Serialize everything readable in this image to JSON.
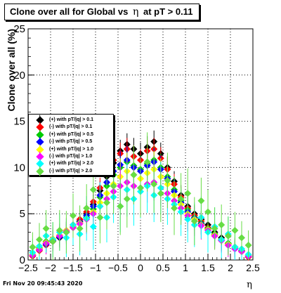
{
  "title": {
    "prefix": "Clone  over all for Global vs",
    "symbol": "η",
    "suffix": "at pT > 0.11"
  },
  "footer": {
    "timestamp": "Fri Nov 20 09:45:43 2020"
  },
  "chart_data": {
    "type": "scatter",
    "title": "Clone  over all for Global vs η at pT > 0.11",
    "xlabel": "η",
    "ylabel": "Clone  over all (%)",
    "xlim": [
      -2.5,
      2.5
    ],
    "ylim": [
      0,
      25
    ],
    "x_ticks": [
      "−2.5",
      "−2",
      "−1.5",
      "−1",
      "−0.5",
      "0",
      "0.5",
      "1",
      "1.5",
      "2",
      "2.5"
    ],
    "y_ticks": [
      "0",
      "5",
      "10",
      "15",
      "20",
      "25"
    ],
    "grid": true,
    "legend_position": "left",
    "series": [
      {
        "name": "(+) with pT/|q| > 0.1",
        "color": "#000000",
        "x": [
          -2.4,
          -2.25,
          -2.1,
          -1.95,
          -1.8,
          -1.65,
          -1.5,
          -1.35,
          -1.2,
          -1.05,
          -0.9,
          -0.75,
          -0.6,
          -0.45,
          -0.3,
          -0.15,
          0.0,
          0.15,
          0.3,
          0.45,
          0.6,
          0.75,
          0.9,
          1.05,
          1.2,
          1.35,
          1.5,
          1.65,
          1.8,
          1.95,
          2.1,
          2.25,
          2.4
        ],
        "y": [
          0.5,
          1.2,
          1.8,
          2.0,
          2.4,
          3.0,
          3.6,
          4.2,
          5.0,
          6.0,
          7.5,
          9.0,
          10.5,
          11.8,
          12.5,
          12.0,
          11.5,
          12.2,
          12.8,
          11.5,
          10.0,
          8.5,
          7.0,
          5.8,
          5.0,
          4.4,
          3.8,
          3.0,
          2.4,
          1.8,
          1.4,
          1.0,
          0.4
        ],
        "err": [
          0.6,
          0.7,
          0.7,
          0.8,
          0.8,
          0.9,
          0.9,
          1.0,
          1.0,
          1.0,
          1.1,
          1.1,
          1.2,
          1.2,
          1.2,
          1.2,
          1.2,
          1.2,
          1.2,
          1.2,
          1.2,
          1.1,
          1.1,
          1.0,
          1.0,
          0.9,
          0.9,
          0.9,
          0.8,
          0.8,
          0.7,
          0.7,
          0.6
        ]
      },
      {
        "name": "(-) with pT/|q| > 0.1",
        "color": "#ff0000",
        "x": [
          -2.4,
          -2.25,
          -2.1,
          -1.95,
          -1.8,
          -1.65,
          -1.5,
          -1.35,
          -1.2,
          -1.05,
          -0.9,
          -0.75,
          -0.6,
          -0.45,
          -0.3,
          -0.15,
          0.0,
          0.15,
          0.3,
          0.45,
          0.6,
          0.75,
          0.9,
          1.05,
          1.2,
          1.35,
          1.5,
          1.65,
          1.8,
          1.95,
          2.1,
          2.25,
          2.4
        ],
        "y": [
          0.4,
          1.0,
          1.6,
          2.0,
          2.5,
          3.2,
          3.8,
          4.4,
          5.2,
          6.3,
          7.8,
          9.5,
          10.8,
          11.5,
          12.0,
          11.2,
          10.8,
          11.8,
          12.0,
          11.0,
          9.8,
          8.2,
          6.8,
          5.6,
          4.8,
          4.2,
          3.5,
          2.8,
          2.2,
          1.7,
          1.3,
          0.9,
          0.3
        ],
        "err": [
          0.6,
          0.7,
          0.7,
          0.8,
          0.8,
          0.9,
          0.9,
          1.0,
          1.0,
          1.0,
          1.1,
          1.1,
          1.2,
          1.2,
          1.2,
          1.2,
          1.2,
          1.2,
          1.2,
          1.2,
          1.2,
          1.1,
          1.1,
          1.0,
          1.0,
          0.9,
          0.9,
          0.9,
          0.8,
          0.8,
          0.7,
          0.7,
          0.6
        ]
      },
      {
        "name": "(+) with pT/|q| > 0.5",
        "color": "#00cc00",
        "x": [
          -2.4,
          -2.25,
          -2.1,
          -1.95,
          -1.8,
          -1.65,
          -1.5,
          -1.35,
          -1.2,
          -1.05,
          -0.9,
          -0.75,
          -0.6,
          -0.45,
          -0.3,
          -0.15,
          0.0,
          0.15,
          0.3,
          0.45,
          0.6,
          0.75,
          0.9,
          1.05,
          1.2,
          1.35,
          1.5,
          1.65,
          1.8,
          1.95,
          2.1,
          2.25,
          2.4
        ],
        "y": [
          0.6,
          1.3,
          2.0,
          2.2,
          2.6,
          3.1,
          3.5,
          4.0,
          4.6,
          5.5,
          6.8,
          8.0,
          9.2,
          10.0,
          10.6,
          10.2,
          9.8,
          10.4,
          10.8,
          10.0,
          9.0,
          7.6,
          6.4,
          5.4,
          4.6,
          4.0,
          3.4,
          2.8,
          2.2,
          1.8,
          1.3,
          1.0,
          0.5
        ],
        "err": [
          0.8,
          0.9,
          1.0,
          1.0,
          1.1,
          1.1,
          1.2,
          1.2,
          1.3,
          1.3,
          1.4,
          1.4,
          1.5,
          1.5,
          1.5,
          1.5,
          1.5,
          1.5,
          1.5,
          1.5,
          1.5,
          1.4,
          1.4,
          1.3,
          1.3,
          1.2,
          1.2,
          1.1,
          1.1,
          1.0,
          1.0,
          0.9,
          0.8
        ]
      },
      {
        "name": "(-) with pT/|q| > 0.5",
        "color": "#0000ff",
        "x": [
          -2.4,
          -2.25,
          -2.1,
          -1.95,
          -1.8,
          -1.65,
          -1.5,
          -1.35,
          -1.2,
          -1.05,
          -0.9,
          -0.75,
          -0.6,
          -0.45,
          -0.3,
          -0.15,
          0.0,
          0.15,
          0.3,
          0.45,
          0.6,
          0.75,
          0.9,
          1.05,
          1.2,
          1.35,
          1.5,
          1.65,
          1.8,
          1.95,
          2.1,
          2.25,
          2.4
        ],
        "y": [
          0.5,
          1.1,
          1.7,
          2.1,
          2.5,
          3.0,
          3.6,
          4.1,
          4.8,
          5.8,
          7.0,
          8.4,
          9.6,
          10.3,
          10.8,
          10.0,
          9.6,
          10.2,
          10.6,
          9.8,
          8.8,
          7.4,
          6.2,
          5.2,
          4.5,
          3.9,
          3.3,
          2.6,
          2.1,
          1.6,
          1.2,
          0.9,
          0.4
        ],
        "err": [
          0.8,
          0.9,
          1.0,
          1.0,
          1.1,
          1.1,
          1.2,
          1.2,
          1.3,
          1.3,
          1.4,
          1.4,
          1.5,
          1.5,
          1.5,
          1.5,
          1.5,
          1.5,
          1.5,
          1.5,
          1.5,
          1.4,
          1.4,
          1.3,
          1.3,
          1.2,
          1.2,
          1.1,
          1.1,
          1.0,
          1.0,
          0.9,
          0.8
        ]
      },
      {
        "name": "(+) with pT/|q| > 1.0",
        "color": "#ffff00",
        "x": [
          -2.4,
          -2.25,
          -2.1,
          -1.95,
          -1.8,
          -1.65,
          -1.5,
          -1.35,
          -1.2,
          -1.05,
          -0.9,
          -0.75,
          -0.6,
          -0.45,
          -0.3,
          -0.15,
          0.0,
          0.15,
          0.3,
          0.45,
          0.6,
          0.75,
          0.9,
          1.05,
          1.2,
          1.35,
          1.5,
          1.65,
          1.8,
          1.95,
          2.1,
          2.25,
          2.4
        ],
        "y": [
          0.6,
          1.2,
          1.9,
          2.3,
          2.7,
          3.2,
          3.6,
          4.0,
          4.5,
          5.2,
          6.2,
          7.2,
          8.2,
          9.0,
          9.6,
          9.2,
          8.8,
          9.4,
          9.8,
          9.0,
          8.2,
          7.0,
          6.0,
          5.0,
          4.4,
          3.8,
          3.3,
          2.7,
          2.2,
          1.7,
          1.3,
          0.9,
          0.5
        ],
        "err": [
          1.0,
          1.1,
          1.2,
          1.3,
          1.3,
          1.4,
          1.5,
          1.5,
          1.6,
          1.7,
          1.8,
          1.8,
          1.9,
          2.0,
          2.0,
          2.0,
          2.0,
          2.0,
          2.0,
          2.0,
          1.9,
          1.8,
          1.8,
          1.7,
          1.6,
          1.5,
          1.5,
          1.4,
          1.3,
          1.3,
          1.2,
          1.1,
          1.0
        ]
      },
      {
        "name": "(-) with pT/|q| > 1.0",
        "color": "#ff00ff",
        "x": [
          -2.4,
          -2.25,
          -2.1,
          -1.95,
          -1.8,
          -1.65,
          -1.5,
          -1.35,
          -1.2,
          -1.05,
          -0.9,
          -0.75,
          -0.6,
          -0.45,
          -0.3,
          -0.15,
          0.0,
          0.15,
          0.3,
          0.45,
          0.6,
          0.75,
          0.9,
          1.05,
          1.2,
          1.35,
          1.5,
          1.65,
          1.8,
          1.95,
          2.1,
          2.25,
          2.4
        ],
        "y": [
          0.5,
          1.1,
          1.8,
          2.2,
          2.6,
          3.1,
          3.5,
          3.9,
          4.4,
          5.0,
          5.8,
          6.6,
          7.4,
          8.0,
          8.4,
          8.0,
          7.8,
          8.2,
          8.4,
          7.8,
          7.2,
          6.4,
          5.6,
          4.8,
          4.2,
          3.7,
          3.2,
          2.6,
          2.1,
          1.6,
          1.2,
          0.9,
          0.4
        ],
        "err": [
          1.0,
          1.1,
          1.2,
          1.3,
          1.3,
          1.4,
          1.5,
          1.5,
          1.6,
          1.7,
          1.8,
          1.8,
          1.9,
          2.0,
          2.0,
          2.0,
          2.0,
          2.0,
          2.0,
          2.0,
          1.9,
          1.8,
          1.8,
          1.7,
          1.6,
          1.5,
          1.5,
          1.4,
          1.3,
          1.3,
          1.2,
          1.1,
          1.0
        ]
      },
      {
        "name": "(+) with pT/|q| > 2.0",
        "color": "#00ffff",
        "x": [
          -2.4,
          -2.25,
          -2.1,
          -1.95,
          -1.8,
          -1.65,
          -1.5,
          -1.35,
          -1.2,
          -1.05,
          -0.9,
          -0.75,
          -0.6,
          -0.45,
          -0.3,
          -0.15,
          0.0,
          0.15,
          0.3,
          0.45,
          0.6,
          0.75,
          0.9,
          1.05,
          1.2,
          1.35,
          1.5,
          1.65,
          1.8,
          1.95,
          2.1,
          2.25,
          2.4
        ],
        "y": [
          0.8,
          1.5,
          2.6,
          2.2,
          3.0,
          2.4,
          3.8,
          2.8,
          4.5,
          3.6,
          5.8,
          4.6,
          6.8,
          5.8,
          7.6,
          6.6,
          7.4,
          8.0,
          7.0,
          7.8,
          6.6,
          6.0,
          5.2,
          4.4,
          3.8,
          4.6,
          3.0,
          3.6,
          2.2,
          2.8,
          1.4,
          1.2,
          0.6
        ],
        "err": [
          1.5,
          1.7,
          1.8,
          1.9,
          2.0,
          2.1,
          2.2,
          2.3,
          2.4,
          2.5,
          2.6,
          2.7,
          2.8,
          2.8,
          2.9,
          2.9,
          2.9,
          2.9,
          2.9,
          2.8,
          2.8,
          2.7,
          2.6,
          2.5,
          2.4,
          2.3,
          2.2,
          2.1,
          2.0,
          1.9,
          1.8,
          1.7,
          1.5
        ]
      },
      {
        "name": "(-) with pT/|q| > 2.0",
        "color": "#66dd44",
        "x": [
          -2.4,
          -2.25,
          -2.1,
          -1.95,
          -1.8,
          -1.65,
          -1.5,
          -1.35,
          -1.2,
          -1.05,
          -0.9,
          -0.75,
          -0.6,
          -0.45,
          -0.3,
          -0.15,
          0.0,
          0.15,
          0.3,
          0.45,
          0.6,
          0.75,
          0.9,
          1.05,
          1.2,
          1.35,
          1.5,
          1.65,
          1.8,
          1.95,
          2.1,
          2.25,
          2.4
        ],
        "y": [
          1.4,
          2.2,
          3.4,
          2.0,
          3.2,
          3.0,
          4.8,
          3.4,
          5.6,
          7.6,
          4.6,
          6.2,
          8.0,
          5.8,
          6.6,
          9.2,
          7.8,
          10.6,
          8.2,
          7.2,
          8.6,
          5.6,
          6.6,
          7.2,
          4.2,
          6.4,
          5.2,
          3.4,
          3.8,
          2.6,
          3.2,
          2.4,
          1.6
        ],
        "err": [
          1.6,
          1.8,
          2.0,
          2.1,
          2.2,
          2.3,
          2.4,
          2.5,
          2.6,
          2.7,
          2.8,
          2.9,
          3.0,
          3.1,
          3.1,
          3.2,
          3.2,
          3.2,
          3.1,
          3.1,
          3.0,
          2.9,
          2.8,
          2.7,
          2.6,
          2.5,
          2.4,
          2.3,
          2.2,
          2.1,
          2.0,
          1.8,
          1.6
        ]
      }
    ]
  }
}
